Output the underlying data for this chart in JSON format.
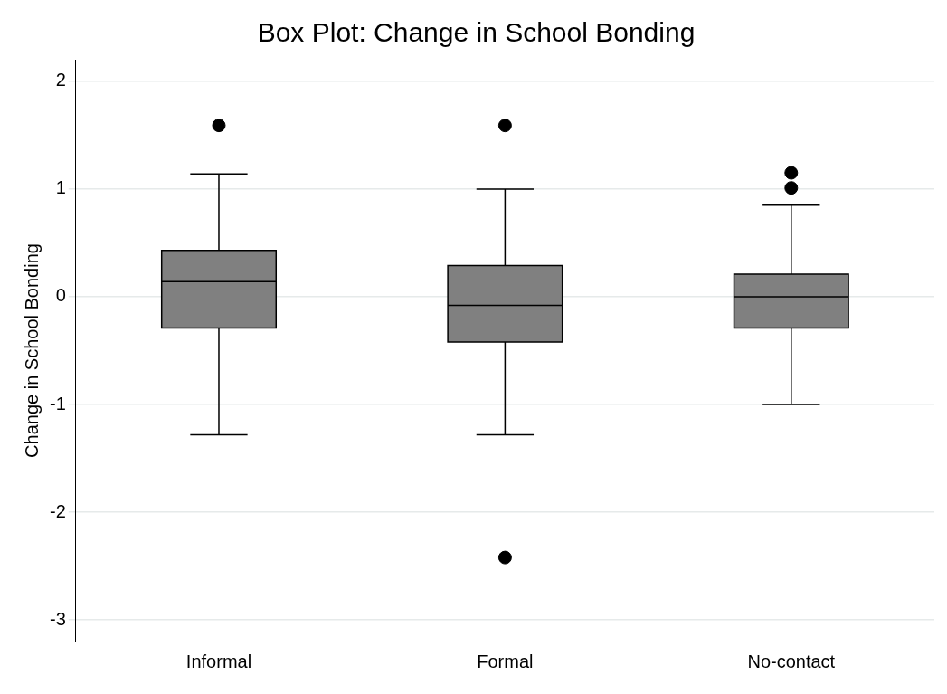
{
  "chart_data": {
    "type": "box",
    "title": "Box Plot: Change in School Bonding",
    "ylabel": "Change in School Bonding",
    "categories": [
      "Informal",
      "Formal",
      "No-contact"
    ],
    "series": [
      {
        "color": "#808080",
        "boxes": [
          {
            "low": -1.28,
            "q1": -0.29,
            "median": 0.14,
            "q3": 0.43,
            "high": 1.14,
            "outliers": [
              1.59
            ]
          },
          {
            "low": -1.28,
            "q1": -0.42,
            "median": -0.08,
            "q3": 0.29,
            "high": 1.0,
            "outliers": [
              1.59,
              -2.42
            ]
          },
          {
            "low": -1.0,
            "q1": -0.29,
            "median": 0.0,
            "q3": 0.21,
            "high": 0.85,
            "outliers": [
              1.15,
              1.01
            ]
          }
        ]
      }
    ],
    "ylim": [
      -3.2,
      2.2
    ],
    "yticks": [
      -3,
      -2,
      -1,
      0,
      1,
      2
    ],
    "grid": "y",
    "legend": false,
    "marker": "circle"
  }
}
